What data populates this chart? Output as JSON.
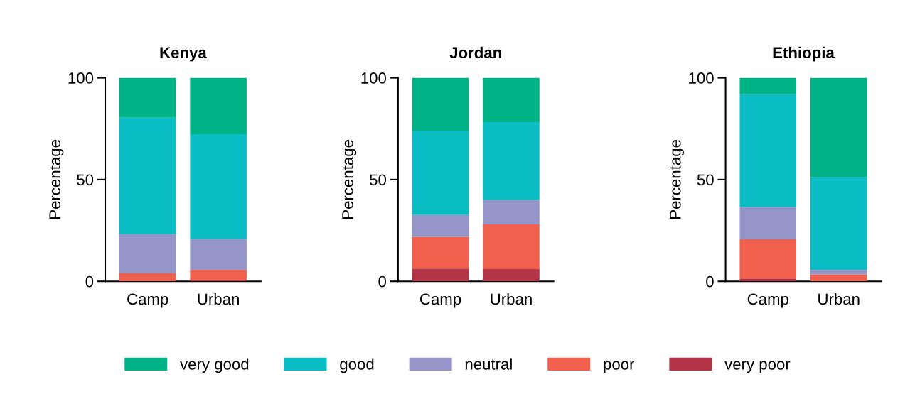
{
  "chart_data": [
    {
      "type": "bar",
      "title": "Kenya",
      "ylabel": "Percentage",
      "categories": [
        "Camp",
        "Urban"
      ],
      "stacked": true,
      "ylim": [
        0,
        100
      ],
      "yticks": [
        0,
        50,
        100
      ],
      "grid": false,
      "legend": "bottom",
      "series": [
        {
          "name": "very poor",
          "color": "#b33446",
          "values": [
            0,
            0.5
          ]
        },
        {
          "name": "poor",
          "color": "#f0604d",
          "values": [
            4,
            5.1
          ]
        },
        {
          "name": "neutral",
          "color": "#9595c9",
          "values": [
            19.2,
            15.2
          ]
        },
        {
          "name": "good",
          "color": "#0abdc4",
          "values": [
            57.2,
            51.5
          ]
        },
        {
          "name": "very good",
          "color": "#00b386",
          "values": [
            19.6,
            27.7
          ]
        }
      ]
    },
    {
      "type": "bar",
      "title": "Jordan",
      "ylabel": "Percentage",
      "categories": [
        "Camp",
        "Urban"
      ],
      "stacked": true,
      "ylim": [
        0,
        100
      ],
      "yticks": [
        0,
        50,
        100
      ],
      "grid": false,
      "series": [
        {
          "name": "very poor",
          "color": "#b33446",
          "values": [
            6.3,
            6
          ]
        },
        {
          "name": "poor",
          "color": "#f0604d",
          "values": [
            15.5,
            22
          ]
        },
        {
          "name": "neutral",
          "color": "#9595c9",
          "values": [
            10.8,
            12
          ]
        },
        {
          "name": "good",
          "color": "#0abdc4",
          "values": [
            41.4,
            38.2
          ]
        },
        {
          "name": "very good",
          "color": "#00b386",
          "values": [
            26,
            21.8
          ]
        }
      ]
    },
    {
      "type": "bar",
      "title": "Ethiopia",
      "ylabel": "Percentage",
      "categories": [
        "Camp",
        "Urban"
      ],
      "stacked": true,
      "ylim": [
        0,
        100
      ],
      "yticks": [
        0,
        50,
        100
      ],
      "grid": false,
      "series": [
        {
          "name": "very poor",
          "color": "#b33446",
          "values": [
            1.4,
            0
          ]
        },
        {
          "name": "poor",
          "color": "#f0604d",
          "values": [
            19.3,
            3.3
          ]
        },
        {
          "name": "neutral",
          "color": "#9595c9",
          "values": [
            15.8,
            2.3
          ]
        },
        {
          "name": "good",
          "color": "#0abdc4",
          "values": [
            55.4,
            45.6
          ]
        },
        {
          "name": "very good",
          "color": "#00b386",
          "values": [
            8.1,
            48.8
          ]
        }
      ]
    }
  ]
}
